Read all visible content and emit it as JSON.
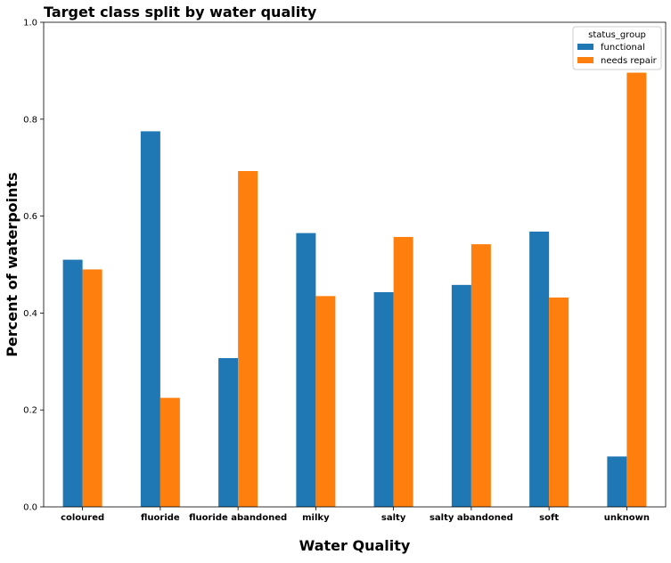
{
  "chart_data": {
    "type": "bar",
    "title": "Target class split by water quality",
    "xlabel": "Water Quality",
    "ylabel": "Percent of waterpoints",
    "ylim": [
      0,
      1.0
    ],
    "yticks": [
      "0.0",
      "0.2",
      "0.4",
      "0.6",
      "0.8",
      "1.0"
    ],
    "grid": false,
    "legend_position": "top-right",
    "legend_title": "status_group",
    "categories": [
      "coloured",
      "fluoride",
      "fluoride abandoned",
      "milky",
      "salty",
      "salty abandoned",
      "soft",
      "unknown"
    ],
    "series": [
      {
        "name": "functional",
        "color": "#1f77b4",
        "values": [
          0.51,
          0.775,
          0.307,
          0.565,
          0.443,
          0.458,
          0.568,
          0.104
        ]
      },
      {
        "name": "needs repair",
        "color": "#ff7f0e",
        "values": [
          0.49,
          0.225,
          0.693,
          0.435,
          0.557,
          0.542,
          0.432,
          0.896
        ]
      }
    ]
  }
}
